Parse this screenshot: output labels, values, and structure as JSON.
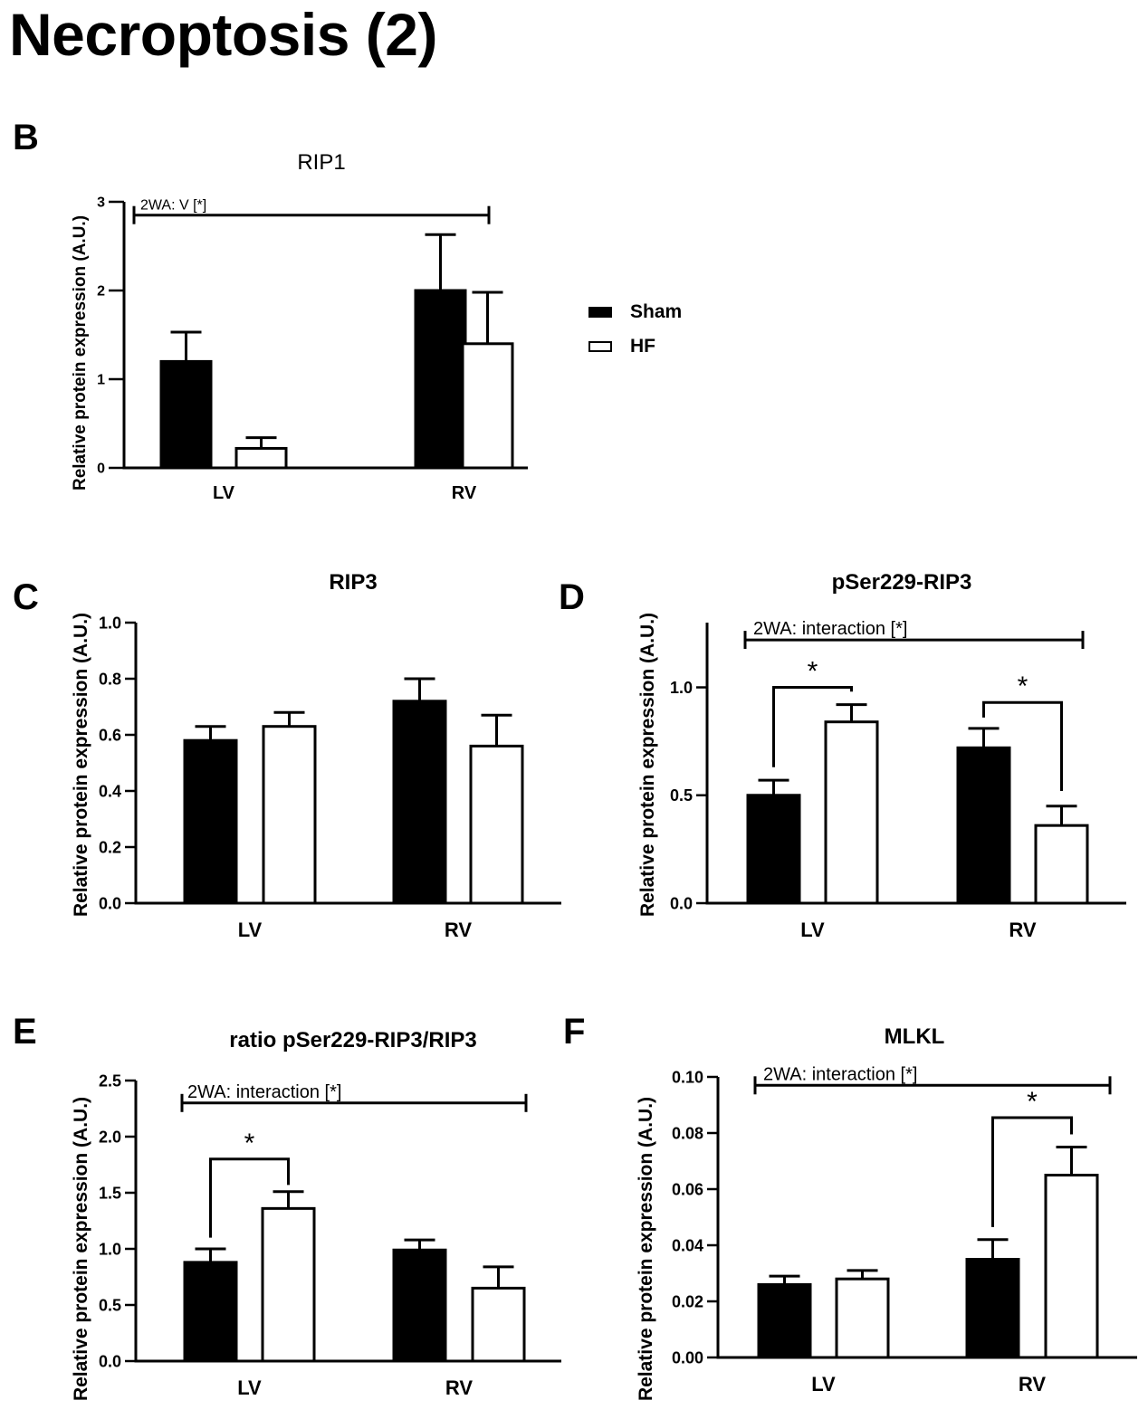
{
  "page_title": "Necroptosis (2)",
  "colors": {
    "sham": "#000000",
    "hf": "#ffffff",
    "axis": "#000000"
  },
  "legend": {
    "entries": [
      {
        "label": "Sham",
        "fill": "#000000"
      },
      {
        "label": "HF",
        "fill": "#ffffff"
      }
    ]
  },
  "chart_data": [
    {
      "id": "B",
      "panel_letter": "B",
      "type": "bar",
      "title": "RIP1",
      "ylabel": "Relative protein expression (A.U.)",
      "categories": [
        "LV",
        "RV"
      ],
      "ylim": [
        0,
        3
      ],
      "yticks": [
        0,
        1,
        2,
        3
      ],
      "ytick_labels": [
        "0",
        "1",
        "2",
        "3"
      ],
      "series": [
        {
          "name": "Sham",
          "values": [
            1.2,
            2.0
          ],
          "errors": [
            0.33,
            0.63
          ]
        },
        {
          "name": "HF",
          "values": [
            0.22,
            1.4
          ],
          "errors": [
            0.12,
            0.58
          ]
        }
      ],
      "annotation": {
        "text": "2WA: V [*]",
        "y": 2.85
      },
      "significance": []
    },
    {
      "id": "C",
      "panel_letter": "C",
      "type": "bar",
      "title": "RIP3",
      "ylabel": "Relative protein expression (A.U.)",
      "categories": [
        "LV",
        "RV"
      ],
      "ylim": [
        0,
        1.0
      ],
      "yticks": [
        0,
        0.2,
        0.4,
        0.6,
        0.8,
        1.0
      ],
      "ytick_labels": [
        "0.0",
        "0.2",
        "0.4",
        "0.6",
        "0.8",
        "1.0"
      ],
      "series": [
        {
          "name": "Sham",
          "values": [
            0.58,
            0.72
          ],
          "errors": [
            0.05,
            0.08
          ]
        },
        {
          "name": "HF",
          "values": [
            0.63,
            0.56
          ],
          "errors": [
            0.05,
            0.11
          ]
        }
      ],
      "annotation": null,
      "significance": []
    },
    {
      "id": "D",
      "panel_letter": "D",
      "type": "bar",
      "title": "pSer229-RIP3",
      "ylabel": "Relative protein expression (A.U.)",
      "categories": [
        "LV",
        "RV"
      ],
      "ylim": [
        0,
        1.3
      ],
      "yticks": [
        0,
        0.5,
        1.0
      ],
      "ytick_labels": [
        "0.0",
        "0.5",
        "1.0"
      ],
      "series": [
        {
          "name": "Sham",
          "values": [
            0.5,
            0.72
          ],
          "errors": [
            0.07,
            0.09
          ]
        },
        {
          "name": "HF",
          "values": [
            0.84,
            0.36
          ],
          "errors": [
            0.08,
            0.09
          ]
        }
      ],
      "annotation": {
        "text": "2WA: interaction [*]",
        "y": 1.22
      },
      "significance": [
        {
          "category": 0,
          "label": "*",
          "y": 1.0,
          "left_end": 0.63,
          "right_end": 0.98
        },
        {
          "category": 1,
          "label": "*",
          "y": 0.93,
          "left_end": 0.86,
          "right_end": 0.52
        }
      ]
    },
    {
      "id": "E",
      "panel_letter": "E",
      "type": "bar",
      "title": "ratio pSer229-RIP3/RIP3",
      "ylabel": "Relative protein expression (A.U.)",
      "categories": [
        "LV",
        "RV"
      ],
      "ylim": [
        0,
        2.5
      ],
      "yticks": [
        0,
        0.5,
        1.0,
        1.5,
        2.0,
        2.5
      ],
      "ytick_labels": [
        "0.0",
        "0.5",
        "1.0",
        "1.5",
        "2.0",
        "2.5"
      ],
      "series": [
        {
          "name": "Sham",
          "values": [
            0.88,
            0.99
          ],
          "errors": [
            0.12,
            0.09
          ]
        },
        {
          "name": "HF",
          "values": [
            1.36,
            0.65
          ],
          "errors": [
            0.15,
            0.19
          ]
        }
      ],
      "annotation": {
        "text": "2WA: interaction [*]",
        "y": 2.3
      },
      "significance": [
        {
          "category": 0,
          "label": "*",
          "y": 1.8,
          "left_end": 1.1,
          "right_end": 1.57
        }
      ]
    },
    {
      "id": "F",
      "panel_letter": "F",
      "type": "bar",
      "title": "MLKL",
      "ylabel": "Relative protein expression (A.U.)",
      "categories": [
        "LV",
        "RV"
      ],
      "ylim": [
        0,
        0.1
      ],
      "yticks": [
        0,
        0.02,
        0.04,
        0.06,
        0.08,
        0.1
      ],
      "ytick_labels": [
        "0.00",
        "0.02",
        "0.04",
        "0.06",
        "0.08",
        "0.10"
      ],
      "series": [
        {
          "name": "Sham",
          "values": [
            0.026,
            0.035
          ],
          "errors": [
            0.003,
            0.007
          ]
        },
        {
          "name": "HF",
          "values": [
            0.028,
            0.065
          ],
          "errors": [
            0.003,
            0.01
          ]
        }
      ],
      "annotation": {
        "text": "2WA: interaction [*]",
        "y": 0.097
      },
      "significance": [
        {
          "category": 1,
          "label": "*",
          "y": 0.0855,
          "left_end": 0.0465,
          "right_end": 0.0795
        }
      ]
    }
  ]
}
